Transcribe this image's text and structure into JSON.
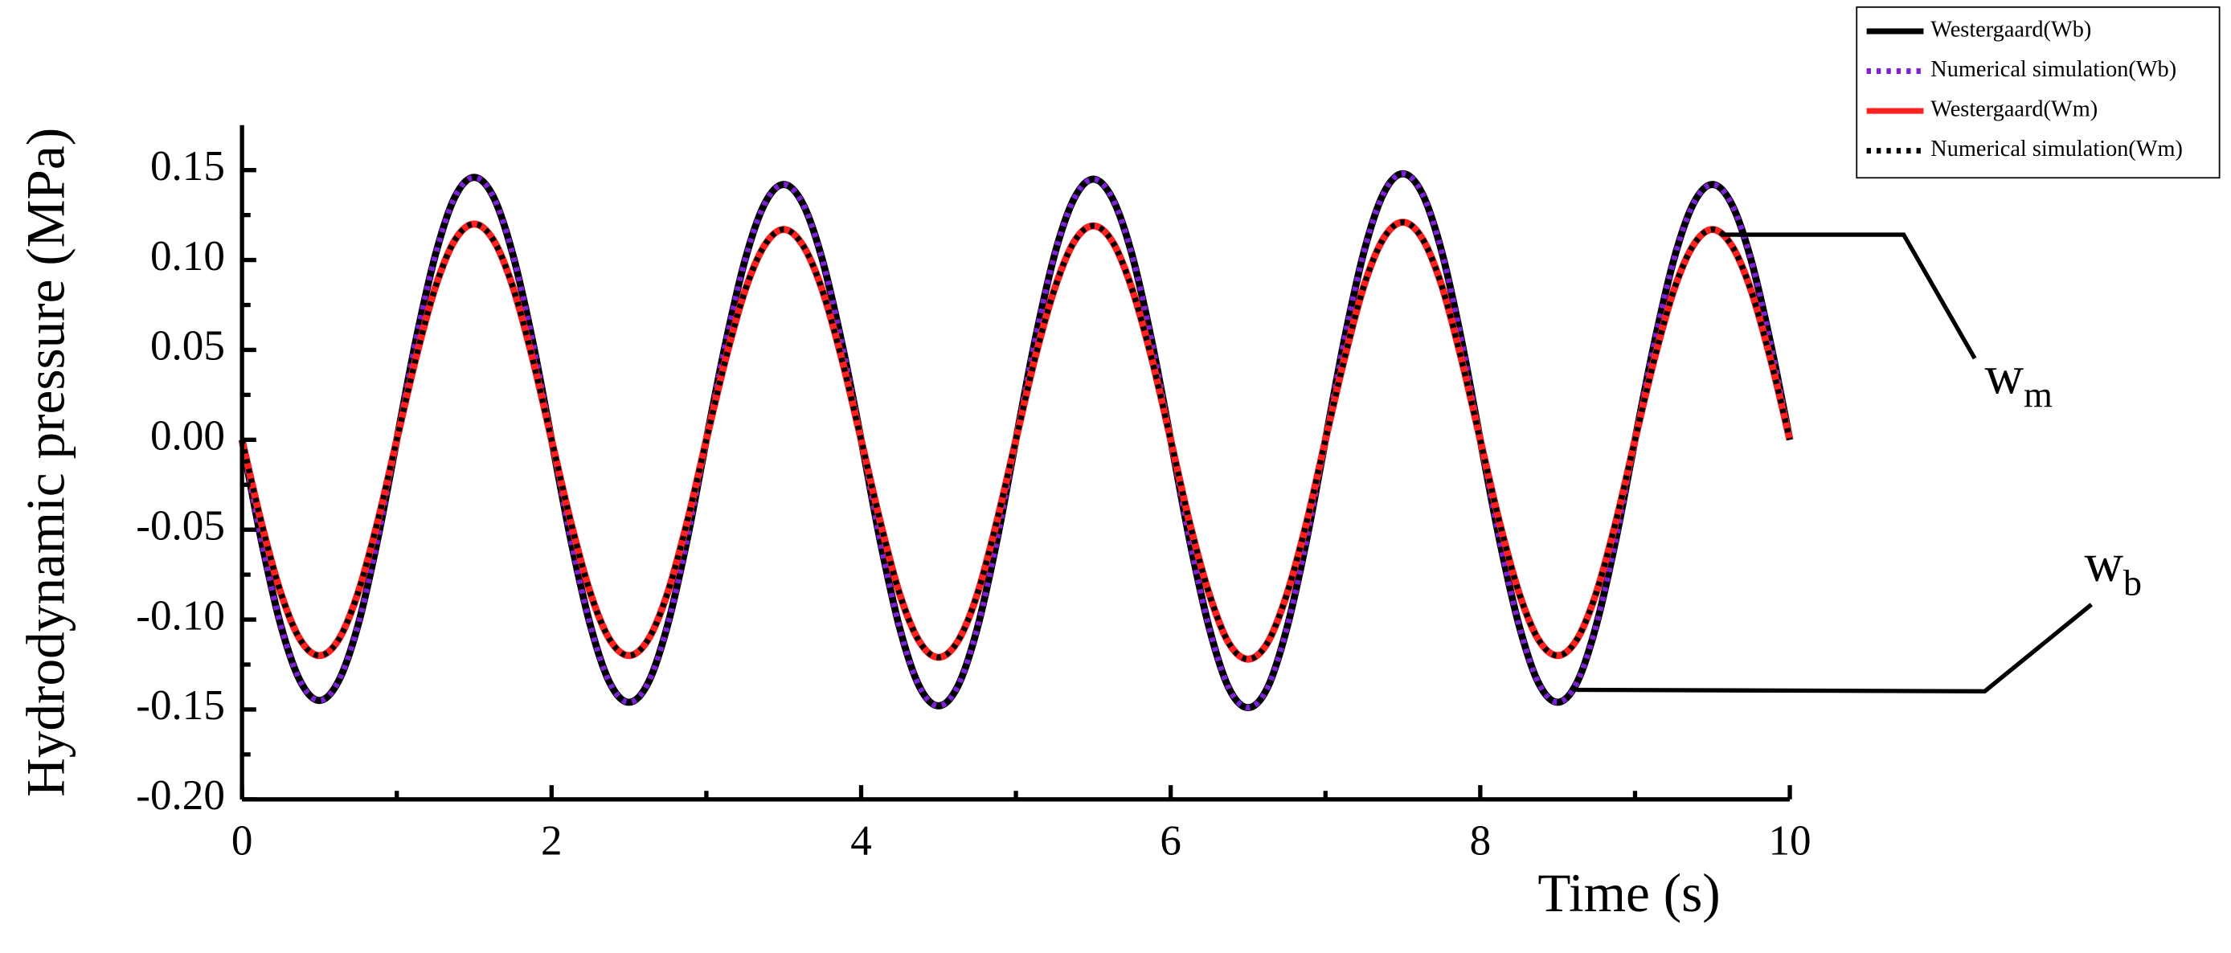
{
  "chart_data": {
    "type": "line",
    "x_label": "Time (s)",
    "y_label": "Hydrodynamic pressure (MPa)",
    "xlim": [
      0,
      10
    ],
    "ylim": [
      -0.2,
      0.175
    ],
    "xticks": [
      0,
      2,
      4,
      6,
      8,
      10
    ],
    "xminorticks": [
      1,
      3,
      5,
      7,
      9
    ],
    "yticks": [
      {
        "value": -0.2,
        "label": "-0.20"
      },
      -0.15,
      {
        "value": -0.1,
        "label": "-0.10"
      },
      -0.05,
      {
        "value": 0,
        "label": "0.00"
      },
      0.05,
      {
        "value": 0.1,
        "label": "0.10"
      },
      0.15
    ],
    "yminorticks": [
      -0.175,
      -0.125,
      -0.075,
      -0.025,
      0.025,
      0.075,
      0.125
    ],
    "legend": "top-right",
    "x": [
      0,
      0.125,
      0.25,
      0.375,
      0.5,
      0.625,
      0.75,
      0.875,
      1,
      1.125,
      1.25,
      1.375,
      1.5,
      1.625,
      1.75,
      1.875,
      2,
      2.125,
      2.25,
      2.375,
      2.5,
      2.625,
      2.75,
      2.875,
      3,
      3.125,
      3.25,
      3.375,
      3.5,
      3.625,
      3.75,
      3.875,
      4,
      4.125,
      4.25,
      4.375,
      4.5,
      4.625,
      4.75,
      4.875,
      5,
      5.125,
      5.25,
      5.375,
      5.5,
      5.625,
      5.75,
      5.875,
      6,
      6.125,
      6.25,
      6.375,
      6.5,
      6.625,
      6.75,
      6.875,
      7,
      7.125,
      7.25,
      7.375,
      7.5,
      7.625,
      7.75,
      7.875,
      8,
      8.125,
      8.25,
      8.375,
      8.5,
      8.625,
      8.75,
      8.875,
      9,
      9.125,
      9.25,
      9.375,
      9.5,
      9.625,
      9.75,
      9.875,
      10
    ],
    "series": [
      {
        "name": "Westergaard(Wb)",
        "color": "#000000",
        "dash": false,
        "values": [
          0,
          -0.056,
          -0.103,
          -0.134,
          -0.145,
          -0.134,
          -0.103,
          -0.056,
          0,
          0.056,
          0.103,
          0.135,
          0.146,
          0.135,
          0.103,
          0.056,
          0,
          -0.056,
          -0.103,
          -0.135,
          -0.146,
          -0.135,
          -0.103,
          -0.056,
          0,
          0.054,
          0.1,
          0.131,
          0.142,
          0.131,
          0.1,
          0.054,
          0,
          -0.057,
          -0.105,
          -0.137,
          -0.148,
          -0.137,
          -0.105,
          -0.057,
          0,
          0.056,
          0.103,
          0.134,
          0.145,
          0.134,
          0.103,
          0.056,
          0,
          -0.057,
          -0.105,
          -0.138,
          -0.149,
          -0.138,
          -0.105,
          -0.057,
          0,
          0.057,
          0.105,
          0.137,
          0.148,
          0.137,
          0.105,
          0.057,
          0,
          -0.056,
          -0.103,
          -0.135,
          -0.146,
          -0.135,
          -0.103,
          -0.056,
          0,
          0.054,
          0.1,
          0.131,
          0.142,
          0.131,
          0.1,
          0.054,
          0
        ]
      },
      {
        "name": "Numerical simulation(Wb)",
        "color": "#7b22d6",
        "dash": true,
        "values": [
          0,
          -0.056,
          -0.103,
          -0.134,
          -0.145,
          -0.134,
          -0.103,
          -0.056,
          0,
          0.056,
          0.103,
          0.135,
          0.146,
          0.135,
          0.103,
          0.056,
          0,
          -0.056,
          -0.103,
          -0.135,
          -0.146,
          -0.135,
          -0.103,
          -0.056,
          0,
          0.054,
          0.1,
          0.131,
          0.142,
          0.131,
          0.1,
          0.054,
          0,
          -0.057,
          -0.105,
          -0.137,
          -0.148,
          -0.137,
          -0.105,
          -0.057,
          0,
          0.056,
          0.103,
          0.134,
          0.145,
          0.134,
          0.103,
          0.056,
          0,
          -0.057,
          -0.105,
          -0.138,
          -0.149,
          -0.138,
          -0.105,
          -0.057,
          0,
          0.057,
          0.105,
          0.137,
          0.148,
          0.137,
          0.105,
          0.057,
          0,
          -0.056,
          -0.103,
          -0.135,
          -0.146,
          -0.135,
          -0.103,
          -0.056,
          0,
          0.054,
          0.1,
          0.131,
          0.142,
          0.131,
          0.1,
          0.054,
          0
        ]
      },
      {
        "name": "Westergaard(Wm)",
        "color": "#ff2020",
        "dash": false,
        "values": [
          0,
          -0.046,
          -0.085,
          -0.111,
          -0.12,
          -0.111,
          -0.085,
          -0.046,
          0,
          0.046,
          0.085,
          0.111,
          0.12,
          0.111,
          0.085,
          0.046,
          0,
          -0.046,
          -0.085,
          -0.111,
          -0.12,
          -0.111,
          -0.085,
          -0.046,
          0,
          0.045,
          0.083,
          0.108,
          0.117,
          0.108,
          0.083,
          0.045,
          0,
          -0.046,
          -0.086,
          -0.112,
          -0.121,
          -0.112,
          -0.086,
          -0.046,
          0,
          0.046,
          0.084,
          0.11,
          0.119,
          0.11,
          0.084,
          0.046,
          0,
          -0.047,
          -0.086,
          -0.113,
          -0.122,
          -0.113,
          -0.086,
          -0.047,
          0,
          0.046,
          0.086,
          0.112,
          0.121,
          0.112,
          0.086,
          0.046,
          0,
          -0.046,
          -0.085,
          -0.111,
          -0.12,
          -0.111,
          -0.085,
          -0.046,
          0,
          0.045,
          0.083,
          0.108,
          0.117,
          0.108,
          0.083,
          0.045,
          0
        ]
      },
      {
        "name": "Numerical simulation(Wm)",
        "color": "#000000",
        "dash": true,
        "values": [
          0,
          -0.046,
          -0.085,
          -0.111,
          -0.12,
          -0.111,
          -0.085,
          -0.046,
          0,
          0.046,
          0.085,
          0.111,
          0.12,
          0.111,
          0.085,
          0.046,
          0,
          -0.046,
          -0.085,
          -0.111,
          -0.12,
          -0.111,
          -0.085,
          -0.046,
          0,
          0.045,
          0.083,
          0.108,
          0.117,
          0.108,
          0.083,
          0.045,
          0,
          -0.046,
          -0.086,
          -0.112,
          -0.121,
          -0.112,
          -0.086,
          -0.046,
          0,
          0.046,
          0.084,
          0.11,
          0.119,
          0.11,
          0.084,
          0.046,
          0,
          -0.047,
          -0.086,
          -0.113,
          -0.122,
          -0.113,
          -0.086,
          -0.047,
          0,
          0.046,
          0.086,
          0.112,
          0.121,
          0.112,
          0.086,
          0.046,
          0,
          -0.046,
          -0.085,
          -0.111,
          -0.12,
          -0.111,
          -0.085,
          -0.046,
          0,
          0.045,
          0.083,
          0.108,
          0.117,
          0.108,
          0.083,
          0.045,
          0
        ]
      }
    ],
    "annotations": [
      {
        "text": "w",
        "sub": "m"
      },
      {
        "text": "w",
        "sub": "b"
      }
    ]
  }
}
